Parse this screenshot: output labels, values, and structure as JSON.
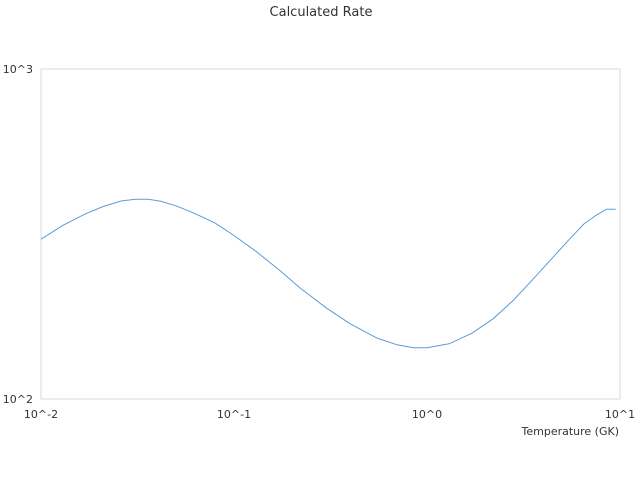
{
  "chart_data": {
    "type": "line",
    "title": "Calculated Rate",
    "xlabel": "Temperature (GK)",
    "ylabel": "",
    "x_scale": "log",
    "y_scale": "log",
    "xlim": [
      0.01,
      10
    ],
    "ylim": [
      100,
      1000
    ],
    "x_ticks": [
      {
        "value": 0.01,
        "label": "10^-2"
      },
      {
        "value": 0.1,
        "label": "10^-1"
      },
      {
        "value": 1,
        "label": "10^0"
      },
      {
        "value": 10,
        "label": "10^1"
      }
    ],
    "y_ticks": [
      {
        "value": 100,
        "label": "10^2"
      },
      {
        "value": 1000,
        "label": "10^3"
      }
    ],
    "grid": false,
    "legend": "none",
    "series": [
      {
        "color": "#5b9bd5",
        "points": [
          {
            "x": 0.01,
            "y": 305
          },
          {
            "x": 0.013,
            "y": 336
          },
          {
            "x": 0.017,
            "y": 364
          },
          {
            "x": 0.021,
            "y": 383
          },
          {
            "x": 0.026,
            "y": 398
          },
          {
            "x": 0.031,
            "y": 403
          },
          {
            "x": 0.036,
            "y": 403
          },
          {
            "x": 0.042,
            "y": 397
          },
          {
            "x": 0.05,
            "y": 385
          },
          {
            "x": 0.06,
            "y": 369
          },
          {
            "x": 0.07,
            "y": 354
          },
          {
            "x": 0.08,
            "y": 341
          },
          {
            "x": 0.1,
            "y": 313
          },
          {
            "x": 0.13,
            "y": 280
          },
          {
            "x": 0.17,
            "y": 247
          },
          {
            "x": 0.22,
            "y": 217
          },
          {
            "x": 0.3,
            "y": 189
          },
          {
            "x": 0.4,
            "y": 169
          },
          {
            "x": 0.55,
            "y": 153
          },
          {
            "x": 0.7,
            "y": 146
          },
          {
            "x": 0.85,
            "y": 143
          },
          {
            "x": 1.0,
            "y": 143
          },
          {
            "x": 1.3,
            "y": 147
          },
          {
            "x": 1.7,
            "y": 158
          },
          {
            "x": 2.2,
            "y": 175
          },
          {
            "x": 2.8,
            "y": 199
          },
          {
            "x": 3.5,
            "y": 229
          },
          {
            "x": 4.5,
            "y": 269
          },
          {
            "x": 5.5,
            "y": 306
          },
          {
            "x": 6.5,
            "y": 339
          },
          {
            "x": 7.5,
            "y": 360
          },
          {
            "x": 8.5,
            "y": 376
          },
          {
            "x": 9.5,
            "y": 376
          }
        ]
      }
    ]
  }
}
